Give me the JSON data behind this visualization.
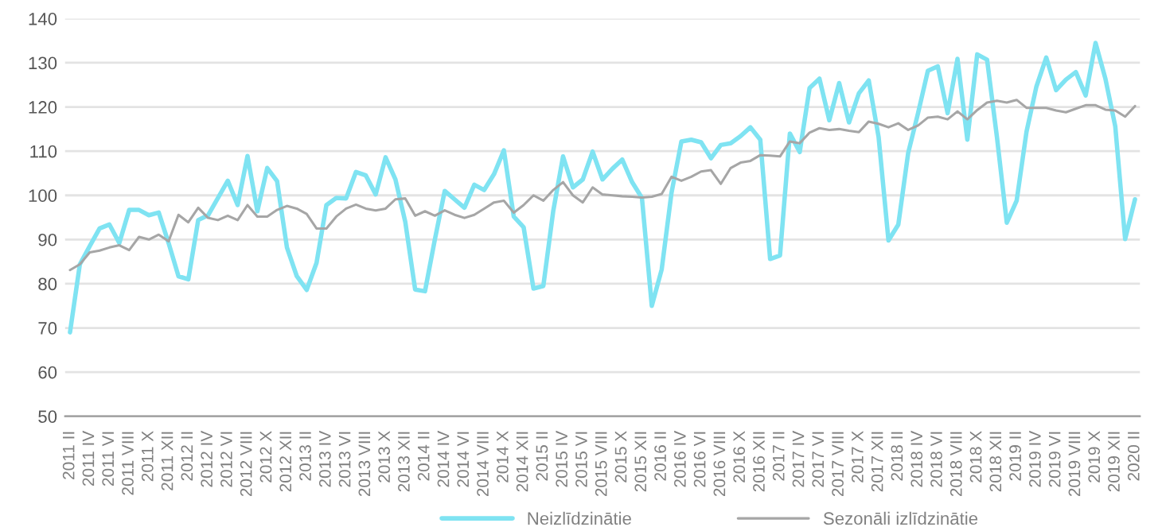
{
  "chart_data": {
    "type": "line",
    "categories": [
      "2011 II",
      null,
      "2011 IV",
      null,
      "2011 VI",
      null,
      "2011 VIII",
      null,
      "2011 X",
      null,
      "2011 XII",
      null,
      "2012 II",
      null,
      "2012 IV",
      null,
      "2012 VI",
      null,
      "2012 VIII",
      null,
      "2012 X",
      null,
      "2012 XII",
      null,
      "2013 II",
      null,
      "2013 IV",
      null,
      "2013 VI",
      null,
      "2013 VIII",
      null,
      "2013 X",
      null,
      "2013 XII",
      null,
      "2014 II",
      null,
      "2014 IV",
      null,
      "2014 VI",
      null,
      "2014 VIII",
      null,
      "2014 X",
      null,
      "2014 XII",
      null,
      "2015 II",
      null,
      "2015 IV",
      null,
      "2015 VI",
      null,
      "2015 VIII",
      null,
      "2015 X",
      null,
      "2015 XII",
      null,
      "2016 II",
      null,
      "2016 IV",
      null,
      "2016 VI",
      null,
      "2016 VIII",
      null,
      "2016 X",
      null,
      "2016 XII",
      null,
      "2017 II",
      null,
      "2017 IV",
      null,
      "2017 VI",
      null,
      "2017 VIII",
      null,
      "2017 X",
      null,
      "2017 XII",
      null,
      "2018 II",
      null,
      "2018 IV",
      null,
      "2018 VI",
      null,
      "2018 VIII",
      null,
      "2018 X",
      null,
      "2018 XII",
      null,
      "2019 II",
      null,
      "2019 IV",
      null,
      "2019 VI",
      null,
      "2019 VIII",
      null,
      "2019 X",
      null,
      "2019 XII",
      null,
      "2020 II"
    ],
    "series": [
      {
        "name": "Neizlīdzinātie",
        "color": "#7fe3f2",
        "values": [
          69,
          84.4,
          88.5,
          92.5,
          93.4,
          89.2,
          96.7,
          96.7,
          95.5,
          96.1,
          89.2,
          81.7,
          81,
          94.4,
          95.5,
          99.4,
          103.3,
          97.8,
          108.9,
          96.4,
          106.2,
          103.2,
          88.2,
          81.7,
          78.6,
          84.7,
          97.8,
          99.4,
          99.3,
          105.3,
          104.5,
          100.2,
          108.6,
          103.6,
          94,
          78.7,
          78.3,
          90,
          101,
          99.1,
          97.2,
          102.4,
          101.2,
          104.8,
          110.2,
          95.2,
          92.8,
          78.9,
          79.5,
          96.4,
          108.8,
          101.8,
          103.6,
          109.9,
          103.6,
          106,
          108.1,
          103,
          99.4,
          75,
          83.2,
          100.6,
          112.2,
          112.6,
          112,
          108.4,
          111.4,
          111.8,
          113.4,
          115.4,
          112.6,
          85.6,
          86.4,
          114,
          109.8,
          124.3,
          126.4,
          117,
          125.4,
          116.5,
          123.1,
          126,
          113.2,
          89.8,
          93.4,
          109.6,
          118.6,
          128.2,
          129.2,
          118.6,
          130.9,
          112.6,
          131.9,
          130.7,
          113.2,
          93.8,
          98.8,
          114.4,
          124.6,
          131.2,
          123.8,
          126.2,
          127.9,
          122.6,
          134.5,
          126.4,
          115.6,
          90.1,
          99.1
        ]
      },
      {
        "name": "Sezonāli izlīdzinātie",
        "color": "#a6a6a6",
        "values": [
          83.1,
          84.4,
          87.1,
          87.5,
          88.2,
          88.7,
          87.6,
          90.6,
          90,
          91.1,
          89.6,
          95.6,
          93.9,
          97.2,
          94.9,
          94.4,
          95.4,
          94.4,
          97.8,
          95.2,
          95.2,
          96.7,
          97.6,
          97,
          95.8,
          92.5,
          92.5,
          95.2,
          97,
          97.9,
          97,
          96.6,
          97,
          99.1,
          99.3,
          95.4,
          96.4,
          95.4,
          96.6,
          95.6,
          94.9,
          95.6,
          97,
          98.4,
          98.8,
          96.1,
          97.8,
          100,
          98.8,
          101.2,
          103,
          100,
          98.4,
          101.8,
          100.2,
          100,
          99.8,
          99.7,
          99.5,
          99.7,
          100.3,
          104.2,
          103.3,
          104.2,
          105.4,
          105.7,
          102.6,
          106.2,
          107.4,
          107.8,
          109.1,
          109,
          108.8,
          112.2,
          111.8,
          114.2,
          115.2,
          114.8,
          115,
          114.6,
          114.3,
          116.7,
          116.2,
          115.4,
          116.3,
          114.8,
          115.8,
          117.6,
          117.8,
          117.2,
          119,
          117.2,
          119.3,
          121,
          121.4,
          121,
          121.6,
          119.8,
          119.8,
          119.8,
          119.2,
          118.8,
          119.6,
          120.4,
          120.4,
          119.4,
          119.2,
          117.8,
          120.2
        ]
      }
    ],
    "ylim": [
      50,
      140
    ],
    "yticks": [
      50,
      60,
      70,
      80,
      90,
      100,
      110,
      120,
      130,
      140
    ],
    "grid": "y",
    "legend": "bottom"
  }
}
